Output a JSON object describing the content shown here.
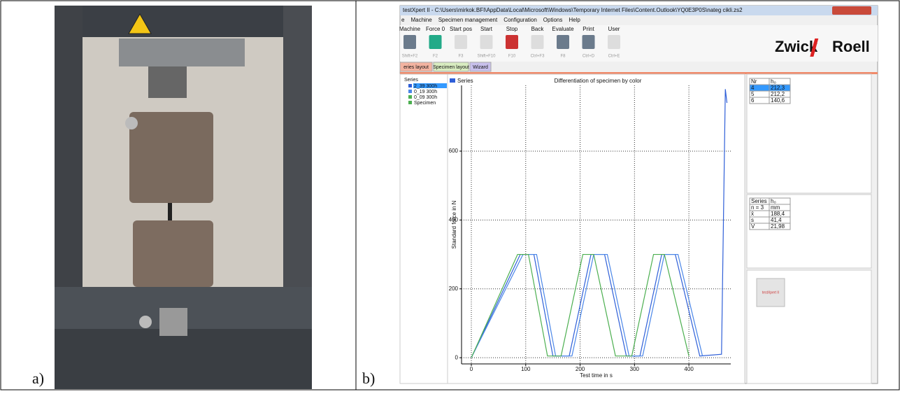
{
  "labels": {
    "a": "a)",
    "b": "b)"
  },
  "window": {
    "title": "testXpert II  -  C:\\Users\\mirkok.BFI\\AppData\\Local\\Microsoft\\Windows\\Temporary Internet Files\\Content.Outlook\\YQ0E3P0S\\nateg cikli.zs2",
    "menu": [
      "e",
      "Machine",
      "Specimen management",
      "Configuration",
      "Options",
      "Help"
    ],
    "toolbar": [
      {
        "label": "Machine",
        "key": "Shift+F2"
      },
      {
        "label": "Force 0",
        "key": "F2"
      },
      {
        "label": "Start pos",
        "key": "F3"
      },
      {
        "label": "Start",
        "key": "Shift+F10"
      },
      {
        "label": "Stop",
        "key": "F10"
      },
      {
        "label": "Back",
        "key": "Ctrl+F3"
      },
      {
        "label": "Evaluate",
        "key": "F8"
      },
      {
        "label": "Print",
        "key": "Ctrl+D"
      },
      {
        "label": "User",
        "key": "Ctrl+E"
      }
    ],
    "brand": [
      "Zwick",
      "Roell"
    ],
    "tabs": [
      "eries layout",
      "Specimen layout",
      "Wizard"
    ],
    "tree_root": "Series",
    "tree_items": [
      "2_39 300h",
      "0_19 300h",
      "0_09 300h",
      "Specimen"
    ],
    "tables": [
      {
        "header": [
          [
            "Nr",
            "h₀"
          ]
        ],
        "rows": [
          [
            "4",
            "212,3"
          ],
          [
            "5",
            "212,2"
          ],
          [
            "6",
            "140,6"
          ]
        ]
      },
      {
        "header": [
          [
            "Series",
            "h₀"
          ],
          [
            "n = 3",
            "mm"
          ]
        ],
        "rows": [
          [
            "x̄",
            "188,4"
          ],
          [
            "s",
            "41,4"
          ],
          [
            "V",
            "21,98"
          ]
        ]
      }
    ],
    "badge": "testXpert II"
  },
  "chart_data": {
    "type": "line",
    "title": "Differentiation of specimen by color",
    "legend_title": "Series",
    "x_label": "Test time in s",
    "y_label": "Standard force in N",
    "xlim": [
      -18,
      477
    ],
    "ylim": [
      -18,
      791
    ],
    "xticks": [
      0,
      100,
      200,
      300,
      400
    ],
    "yticks": [
      0,
      200,
      400,
      600
    ],
    "grid": true,
    "series": [
      {
        "name": "2_39 300h",
        "color": "#2f5fd8",
        "x": [
          0,
          90,
          115,
          150,
          180,
          220,
          245,
          285,
          310,
          350,
          375,
          420,
          460,
          467,
          470
        ],
        "values": [
          0,
          300,
          300,
          5,
          5,
          300,
          300,
          5,
          5,
          300,
          300,
          5,
          10,
          780,
          740
        ]
      },
      {
        "name": "0_19 300h",
        "color": "#4a86e8",
        "x": [
          0,
          95,
          120,
          155,
          185,
          225,
          250,
          290,
          315,
          355,
          380,
          425
        ],
        "values": [
          0,
          300,
          300,
          5,
          5,
          300,
          300,
          5,
          5,
          300,
          300,
          5
        ]
      },
      {
        "name": "0_09 300h",
        "color": "#4caf50",
        "x": [
          0,
          85,
          105,
          140,
          165,
          205,
          225,
          265,
          295,
          335,
          355,
          400
        ],
        "values": [
          0,
          300,
          300,
          5,
          5,
          300,
          300,
          5,
          5,
          300,
          300,
          5
        ]
      }
    ]
  }
}
